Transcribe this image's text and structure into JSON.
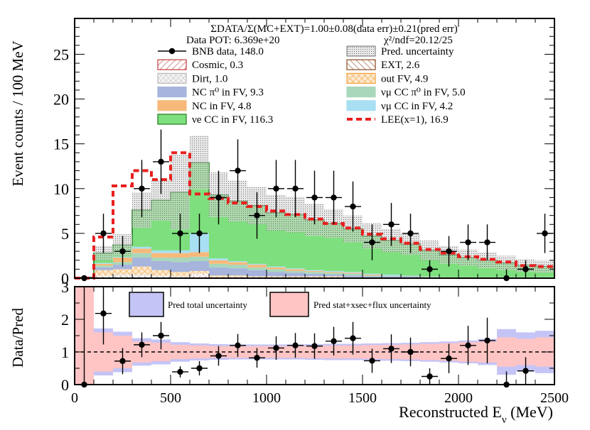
{
  "chart_data": [
    {
      "type": "bar",
      "panel": "top",
      "title": "ΣDATA/Σ(MC+EXT)=1.00±0.08(data err)±0.21(pred err)",
      "pot_text": "Data POT: 6.369e+20",
      "chi2_text": "χ²/ndf=20.12/25",
      "xlabel": "Reconstructed Eν (MeV)",
      "ylabel": "Event counts / 100 MeV",
      "xlim": [
        0,
        2500
      ],
      "ylim": [
        0,
        29
      ],
      "yticks": [
        "0",
        "5",
        "10",
        "15",
        "20",
        "25"
      ],
      "bin_edges": [
        0,
        100,
        200,
        300,
        400,
        500,
        600,
        700,
        800,
        900,
        1000,
        1100,
        1200,
        1300,
        1400,
        1500,
        1600,
        1700,
        1800,
        1900,
        2000,
        2100,
        2200,
        2300,
        2400,
        2500
      ],
      "series": [
        {
          "name": "Cosmic, 0.3",
          "color": "#c23b3b",
          "values": [
            0,
            0,
            0,
            0,
            0,
            0,
            0.3,
            0,
            0,
            0,
            0,
            0,
            0,
            0,
            0,
            0,
            0,
            0,
            0,
            0,
            0,
            0,
            0,
            0,
            0
          ]
        },
        {
          "name": "EXT, 2.6",
          "color": "#8b4a22",
          "values": [
            0,
            0.2,
            0.2,
            0.2,
            0.2,
            0.1,
            0.1,
            0.1,
            0.1,
            0.1,
            0.1,
            0.1,
            0.1,
            0.1,
            0.1,
            0.1,
            0.1,
            0.1,
            0.1,
            0.1,
            0.1,
            0.1,
            0.1,
            0.1,
            0.1
          ]
        },
        {
          "name": "Dirt, 1.0",
          "color": "#bbbbbb",
          "values": [
            0,
            0.1,
            0.2,
            0.2,
            0.1,
            0.1,
            0.1,
            0,
            0,
            0,
            0,
            0,
            0,
            0,
            0,
            0,
            0,
            0,
            0,
            0,
            0,
            0,
            0,
            0,
            0
          ]
        },
        {
          "name": "out FV, 4.9",
          "color": "#f1a340",
          "values": [
            0.1,
            0.6,
            0.6,
            0.9,
            0.6,
            0.5,
            0.3,
            0.2,
            0.2,
            0.1,
            0.1,
            0.1,
            0.1,
            0.1,
            0,
            0,
            0,
            0,
            0,
            0,
            0,
            0,
            0,
            0,
            0
          ]
        },
        {
          "name": "NC π⁰ in FV,  9.3",
          "color": "#a7b4dc",
          "values": [
            0,
            0.3,
            0.5,
            1.0,
            1.0,
            1.1,
            1.1,
            0.9,
            0.8,
            0.7,
            0.5,
            0.4,
            0.3,
            0.2,
            0.2,
            0.1,
            0.1,
            0.1,
            0,
            0,
            0,
            0,
            0,
            0,
            0
          ]
        },
        {
          "name": "νμ CC π⁰ in FV, 5.0",
          "color": "#a9d7bb",
          "values": [
            0,
            0.2,
            0.3,
            0.5,
            0.4,
            0.5,
            0.5,
            0.4,
            0.4,
            0.3,
            0.3,
            0.2,
            0.2,
            0.2,
            0.2,
            0.1,
            0.1,
            0.1,
            0.1,
            0,
            0,
            0,
            0,
            0,
            0
          ]
        },
        {
          "name": "NC in FV, 4.8",
          "color": "#f7b97a",
          "values": [
            0,
            0.2,
            0.5,
            0.5,
            0.5,
            0.5,
            0.5,
            0.4,
            0.3,
            0.3,
            0.2,
            0.2,
            0.1,
            0.1,
            0.1,
            0.1,
            0,
            0,
            0,
            0,
            0,
            0,
            0,
            0,
            0
          ]
        },
        {
          "name": "νμ CC in FV, 4.2",
          "color": "#a8dff2",
          "values": [
            0,
            0.1,
            0.1,
            0.2,
            0.3,
            0.3,
            2.1,
            0.2,
            0.1,
            0.1,
            0.1,
            0.1,
            0.1,
            0.1,
            0.1,
            0.1,
            0.1,
            0,
            0,
            0,
            0,
            0,
            0,
            0,
            0
          ]
        },
        {
          "name": "νe CC in FV, 116.3",
          "color": "#7ddf7d",
          "values": [
            0,
            1.1,
            1.3,
            4.1,
            5.6,
            6.5,
            7.9,
            7.1,
            6.7,
            6.5,
            6.0,
            6.0,
            5.6,
            5.3,
            4.8,
            4.2,
            3.8,
            3.5,
            2.9,
            2.5,
            2.2,
            1.9,
            1.6,
            1.3,
            1.2
          ]
        }
      ],
      "lee": {
        "name": "LEE(x=1), 16.9",
        "color": "#e8201e",
        "values": [
          0,
          4.6,
          10.3,
          12.0,
          11.0,
          14.0,
          9.4,
          8.9,
          8.4,
          8.0,
          7.5,
          7.1,
          6.6,
          6.1,
          5.6,
          4.9,
          4.4,
          3.9,
          3.2,
          2.8,
          2.4,
          2.1,
          1.8,
          1.4,
          1.3
        ]
      },
      "pred_uncertainty": {
        "name": "Pred. uncertainty",
        "errors": [
          0.1,
          0.8,
          1.2,
          2.0,
          2.3,
          4.2,
          3.0,
          2.5,
          2.3,
          2.1,
          2.0,
          2.0,
          1.8,
          1.6,
          1.5,
          1.4,
          1.3,
          1.2,
          1.1,
          1.0,
          0.9,
          0.9,
          0.8,
          0.7,
          0.7
        ]
      },
      "data": {
        "name": "BNB data, 148.0",
        "values": [
          0,
          5,
          3,
          10,
          13,
          5,
          5,
          9,
          12,
          7,
          10,
          10,
          9,
          9,
          8,
          4,
          6,
          5,
          1,
          3,
          4,
          4,
          0,
          1,
          5
        ],
        "errors": [
          0,
          2.2,
          1.7,
          3.2,
          3.6,
          2.2,
          2.2,
          3.0,
          3.5,
          2.6,
          3.2,
          3.2,
          3.0,
          3.0,
          2.8,
          2.0,
          2.4,
          2.2,
          1.0,
          1.7,
          2.0,
          2.0,
          1.0,
          1.0,
          2.2
        ]
      },
      "legend_order": [
        "BNB data, 148.0",
        "Pred. uncertainty",
        "Cosmic, 0.3",
        "EXT, 2.6",
        "Dirt, 1.0",
        "out FV, 4.9",
        "NC π⁰ in FV,  9.3",
        "νμ CC π⁰ in FV, 5.0",
        "NC in FV, 4.8",
        "νμ CC in FV, 4.2",
        "νe CC in FV, 116.3",
        "LEE(x=1), 16.9"
      ]
    },
    {
      "type": "scatter",
      "panel": "bottom",
      "ylabel": "Data/Pred",
      "xlabel": "Reconstructed Eν (MeV)",
      "xlim": [
        0,
        2500
      ],
      "ylim": [
        0,
        3
      ],
      "yticks": [
        "0",
        "1",
        "2",
        "3"
      ],
      "xticks": [
        "0",
        "500",
        "1000",
        "1500",
        "2000",
        "2500"
      ],
      "legend": [
        "Pred total uncertainty",
        "Pred stat+xsec+flux uncertainty"
      ],
      "ratio": [
        0.0,
        2.18,
        0.72,
        1.22,
        1.5,
        0.39,
        0.5,
        0.88,
        1.2,
        0.82,
        1.12,
        1.2,
        1.18,
        1.33,
        1.42,
        0.73,
        1.1,
        1.0,
        0.25,
        0.8,
        1.2,
        1.35,
        0.0,
        0.42,
        null
      ],
      "ratio_err": [
        0,
        0.95,
        0.4,
        0.38,
        0.42,
        0.17,
        0.22,
        0.3,
        0.35,
        0.3,
        0.36,
        0.38,
        0.39,
        0.44,
        0.5,
        0.37,
        0.44,
        0.44,
        0.25,
        0.45,
        0.6,
        0.7,
        0.4,
        0.42,
        0
      ],
      "band_total": [
        2.0,
        0.72,
        0.62,
        0.42,
        0.38,
        0.3,
        0.26,
        0.24,
        0.23,
        0.23,
        0.23,
        0.23,
        0.24,
        0.25,
        0.25,
        0.26,
        0.27,
        0.28,
        0.3,
        0.32,
        0.35,
        0.4,
        0.7,
        0.6,
        0.65
      ],
      "band_stat": [
        2.0,
        0.6,
        0.5,
        0.32,
        0.28,
        0.22,
        0.2,
        0.18,
        0.18,
        0.18,
        0.18,
        0.18,
        0.19,
        0.2,
        0.2,
        0.21,
        0.22,
        0.23,
        0.25,
        0.27,
        0.3,
        0.32,
        0.45,
        0.4,
        0.45
      ]
    }
  ]
}
